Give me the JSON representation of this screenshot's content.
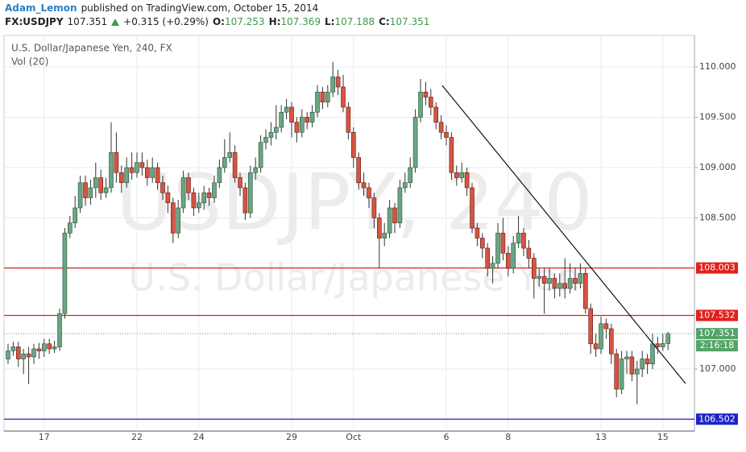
{
  "header": {
    "author": "Adam_Lemon",
    "published": "published on TradingView.com, October 15, 2014",
    "symbol": "FX:USDJPY",
    "last": "107.351",
    "change": "+0.315 (+0.29%)",
    "ohlc": [
      {
        "key": "O:",
        "value": "107.253"
      },
      {
        "key": "H:",
        "value": "107.369"
      },
      {
        "key": "L:",
        "value": "107.188"
      },
      {
        "key": "C:",
        "value": "107.351"
      }
    ]
  },
  "chart_data": {
    "type": "candlestick",
    "legend": "U.S. Dollar/Japanese Yen, 240, FX",
    "volume_label": "Vol (20)",
    "watermark": "USDJPY, 240",
    "watermark_name": "U.S. Dollar/Japanese Yen",
    "colors": {
      "up": "#6ba583",
      "down": "#d75442",
      "up_edge": "#225437",
      "down_edge": "#5b1a13"
    },
    "categories": [
      null,
      null,
      null,
      null,
      null,
      null,
      null,
      "17",
      null,
      null,
      null,
      null,
      null,
      null,
      null,
      null,
      null,
      null,
      null,
      null,
      null,
      null,
      null,
      null,
      null,
      "22",
      null,
      null,
      null,
      null,
      null,
      null,
      null,
      null,
      null,
      null,
      null,
      "24",
      null,
      null,
      null,
      null,
      null,
      null,
      null,
      null,
      null,
      null,
      null,
      null,
      null,
      null,
      null,
      null,
      null,
      "29",
      null,
      null,
      null,
      null,
      null,
      null,
      null,
      null,
      null,
      null,
      null,
      "Oct",
      null,
      null,
      null,
      null,
      null,
      null,
      null,
      null,
      null,
      null,
      null,
      null,
      null,
      null,
      null,
      null,
      null,
      "6",
      null,
      null,
      null,
      null,
      null,
      null,
      null,
      null,
      null,
      null,
      null,
      "8",
      null,
      null,
      null,
      null,
      null,
      null,
      null,
      null,
      null,
      null,
      null,
      null,
      null,
      null,
      null,
      null,
      null,
      "13",
      null,
      null,
      null,
      null,
      null,
      null,
      null,
      null,
      null,
      null,
      null,
      "15",
      null
    ],
    "ohlc": [
      [
        107.1,
        107.25,
        107.05,
        107.18
      ],
      [
        107.18,
        107.27,
        107.13,
        107.22
      ],
      [
        107.22,
        107.27,
        107.02,
        107.1
      ],
      [
        107.1,
        107.2,
        106.95,
        107.15
      ],
      [
        107.15,
        107.22,
        106.85,
        107.12
      ],
      [
        107.12,
        107.25,
        107.05,
        107.2
      ],
      [
        107.2,
        107.26,
        107.1,
        107.18
      ],
      [
        107.18,
        107.3,
        107.12,
        107.25
      ],
      [
        107.25,
        107.3,
        107.15,
        107.2
      ],
      [
        107.2,
        107.28,
        107.16,
        107.22
      ],
      [
        107.22,
        107.6,
        107.18,
        107.55
      ],
      [
        107.55,
        108.4,
        107.5,
        108.35
      ],
      [
        108.35,
        108.52,
        108.3,
        108.45
      ],
      [
        108.45,
        108.72,
        108.4,
        108.6
      ],
      [
        108.6,
        108.92,
        108.55,
        108.85
      ],
      [
        108.85,
        108.92,
        108.62,
        108.7
      ],
      [
        108.7,
        108.88,
        108.63,
        108.8
      ],
      [
        108.8,
        109.05,
        108.7,
        108.9
      ],
      [
        108.9,
        108.98,
        108.68,
        108.75
      ],
      [
        108.75,
        108.9,
        108.7,
        108.8
      ],
      [
        108.8,
        109.45,
        108.75,
        109.15
      ],
      [
        109.15,
        109.35,
        108.85,
        108.95
      ],
      [
        108.95,
        109.02,
        108.75,
        108.85
      ],
      [
        108.85,
        109.1,
        108.8,
        109.0
      ],
      [
        109.0,
        109.15,
        108.88,
        108.95
      ],
      [
        108.95,
        109.15,
        108.9,
        109.05
      ],
      [
        109.05,
        109.15,
        108.92,
        109.0
      ],
      [
        109.0,
        109.08,
        108.82,
        108.9
      ],
      [
        108.9,
        109.1,
        108.85,
        109.0
      ],
      [
        109.0,
        109.05,
        108.78,
        108.85
      ],
      [
        108.85,
        108.92,
        108.68,
        108.75
      ],
      [
        108.75,
        108.82,
        108.55,
        108.65
      ],
      [
        108.65,
        108.7,
        108.25,
        108.35
      ],
      [
        108.35,
        108.68,
        108.3,
        108.6
      ],
      [
        108.6,
        108.97,
        108.55,
        108.9
      ],
      [
        108.9,
        108.95,
        108.68,
        108.75
      ],
      [
        108.75,
        108.8,
        108.52,
        108.6
      ],
      [
        108.6,
        108.75,
        108.55,
        108.65
      ],
      [
        108.65,
        108.82,
        108.58,
        108.75
      ],
      [
        108.75,
        108.8,
        108.62,
        108.7
      ],
      [
        108.7,
        108.92,
        108.65,
        108.85
      ],
      [
        108.85,
        109.08,
        108.8,
        109.0
      ],
      [
        109.0,
        109.28,
        108.95,
        109.1
      ],
      [
        109.1,
        109.35,
        109.05,
        109.15
      ],
      [
        109.15,
        109.22,
        108.85,
        108.9
      ],
      [
        108.9,
        108.95,
        108.72,
        108.8
      ],
      [
        108.8,
        108.85,
        108.48,
        108.55
      ],
      [
        108.55,
        109.02,
        108.5,
        108.95
      ],
      [
        108.95,
        109.1,
        108.88,
        109.0
      ],
      [
        109.0,
        109.32,
        108.95,
        109.25
      ],
      [
        109.25,
        109.38,
        109.18,
        109.3
      ],
      [
        109.3,
        109.45,
        109.22,
        109.35
      ],
      [
        109.35,
        109.62,
        109.28,
        109.4
      ],
      [
        109.4,
        109.62,
        109.35,
        109.55
      ],
      [
        109.55,
        109.68,
        109.48,
        109.6
      ],
      [
        109.6,
        109.65,
        109.3,
        109.45
      ],
      [
        109.45,
        109.5,
        109.25,
        109.35
      ],
      [
        109.35,
        109.58,
        109.3,
        109.5
      ],
      [
        109.5,
        109.55,
        109.38,
        109.45
      ],
      [
        109.45,
        109.62,
        109.4,
        109.55
      ],
      [
        109.55,
        109.82,
        109.5,
        109.75
      ],
      [
        109.75,
        109.8,
        109.58,
        109.65
      ],
      [
        109.65,
        109.82,
        109.6,
        109.75
      ],
      [
        109.75,
        110.05,
        109.7,
        109.9
      ],
      [
        109.9,
        109.97,
        109.72,
        109.8
      ],
      [
        109.8,
        109.92,
        109.55,
        109.6
      ],
      [
        109.6,
        109.65,
        109.28,
        109.35
      ],
      [
        109.35,
        109.4,
        109.0,
        109.1
      ],
      [
        109.1,
        109.15,
        108.78,
        108.85
      ],
      [
        108.85,
        108.95,
        108.72,
        108.8
      ],
      [
        108.8,
        108.85,
        108.6,
        108.7
      ],
      [
        108.7,
        108.75,
        108.4,
        108.5
      ],
      [
        108.5,
        108.55,
        108.0,
        108.3
      ],
      [
        108.3,
        108.45,
        108.22,
        108.35
      ],
      [
        108.35,
        108.68,
        108.3,
        108.6
      ],
      [
        108.6,
        108.65,
        108.35,
        108.45
      ],
      [
        108.45,
        108.88,
        108.4,
        108.8
      ],
      [
        108.8,
        108.95,
        108.75,
        108.85
      ],
      [
        108.85,
        109.1,
        108.8,
        109.0
      ],
      [
        109.0,
        109.58,
        108.95,
        109.5
      ],
      [
        109.5,
        109.88,
        109.45,
        109.75
      ],
      [
        109.75,
        109.85,
        109.62,
        109.7
      ],
      [
        109.7,
        109.78,
        109.52,
        109.6
      ],
      [
        109.6,
        109.65,
        109.38,
        109.45
      ],
      [
        109.45,
        109.52,
        109.28,
        109.35
      ],
      [
        109.35,
        109.42,
        109.22,
        109.3
      ],
      [
        109.3,
        109.35,
        108.88,
        108.95
      ],
      [
        108.95,
        109.02,
        108.82,
        108.9
      ],
      [
        108.9,
        109.05,
        108.85,
        108.95
      ],
      [
        108.95,
        109.0,
        108.72,
        108.8
      ],
      [
        108.8,
        108.85,
        108.35,
        108.4
      ],
      [
        108.4,
        108.45,
        108.22,
        108.3
      ],
      [
        108.3,
        108.35,
        108.1,
        108.2
      ],
      [
        108.2,
        108.25,
        107.92,
        108.0
      ],
      [
        108.0,
        108.12,
        107.85,
        108.05
      ],
      [
        108.05,
        108.45,
        108.0,
        108.35
      ],
      [
        108.35,
        108.5,
        108.08,
        108.15
      ],
      [
        108.15,
        108.22,
        107.92,
        108.0
      ],
      [
        108.0,
        108.32,
        107.95,
        108.25
      ],
      [
        108.25,
        108.52,
        108.2,
        108.35
      ],
      [
        108.35,
        108.4,
        108.12,
        108.2
      ],
      [
        108.2,
        108.28,
        108.0,
        108.1
      ],
      [
        108.1,
        108.15,
        107.7,
        107.9
      ],
      [
        107.9,
        108.0,
        107.82,
        107.92
      ],
      [
        107.92,
        108.0,
        107.55,
        107.85
      ],
      [
        107.85,
        108.0,
        107.78,
        107.9
      ],
      [
        107.9,
        107.95,
        107.7,
        107.8
      ],
      [
        107.8,
        107.95,
        107.72,
        107.85
      ],
      [
        107.85,
        108.1,
        107.7,
        107.8
      ],
      [
        107.8,
        108.05,
        107.75,
        107.9
      ],
      [
        107.9,
        108.0,
        107.78,
        107.85
      ],
      [
        107.85,
        108.05,
        107.8,
        107.95
      ],
      [
        107.95,
        108.0,
        107.55,
        107.6
      ],
      [
        107.6,
        107.65,
        107.15,
        107.25
      ],
      [
        107.25,
        107.35,
        107.12,
        107.2
      ],
      [
        107.2,
        107.52,
        107.15,
        107.45
      ],
      [
        107.45,
        107.5,
        107.3,
        107.4
      ],
      [
        107.4,
        107.45,
        107.05,
        107.15
      ],
      [
        107.15,
        107.2,
        106.72,
        106.8
      ],
      [
        106.8,
        107.18,
        106.75,
        107.1
      ],
      [
        107.1,
        107.18,
        106.95,
        107.12
      ],
      [
        107.12,
        107.18,
        106.88,
        106.95
      ],
      [
        106.95,
        107.08,
        106.65,
        107.0
      ],
      [
        107.0,
        107.18,
        106.92,
        107.1
      ],
      [
        107.1,
        107.15,
        106.95,
        107.05
      ],
      [
        107.05,
        107.35,
        107.0,
        107.25
      ],
      [
        107.25,
        107.32,
        107.15,
        107.22
      ],
      [
        107.22,
        107.35,
        107.18,
        107.253
      ],
      [
        107.253,
        107.369,
        107.188,
        107.351
      ]
    ],
    "ylim": [
      106.384,
      110.312
    ],
    "yticks": [
      {
        "value": 110,
        "label": "110.000"
      },
      {
        "value": 109.5,
        "label": "109.500"
      },
      {
        "value": 109,
        "label": "109.000"
      },
      {
        "value": 108.5,
        "label": "108.500"
      },
      {
        "value": 107,
        "label": "107.000"
      }
    ],
    "grid": true,
    "hlines": [
      {
        "value": 108.003,
        "color": "#e0201c"
      },
      {
        "value": 107.532,
        "color": "#e0201c"
      },
      {
        "value": 106.502,
        "color": "#1c24c8"
      }
    ],
    "trendline": {
      "x": [
        84.2,
        131.4
      ],
      "y": [
        109.816,
        106.856
      ]
    },
    "last_color": "#53a468",
    "countdown": "2:16:18"
  }
}
